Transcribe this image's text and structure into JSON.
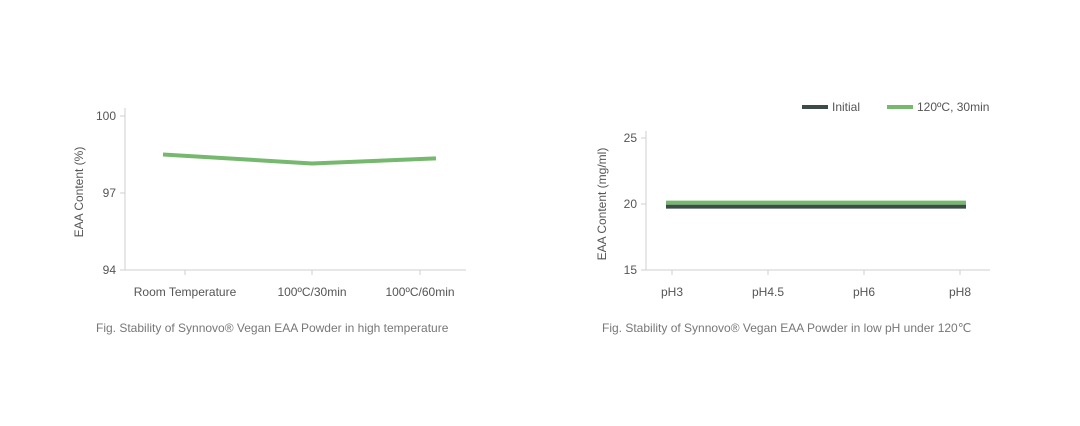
{
  "chart_data": [
    {
      "type": "line",
      "categories": [
        "Room Temperature",
        "100ºC/30min",
        "100ºC/60min"
      ],
      "series": [
        {
          "values": [
            98.5,
            98.15,
            98.35
          ],
          "color": "#76b86e"
        }
      ],
      "ylabel": "EAA Content (%)",
      "yticks": [
        "94",
        "97",
        "100"
      ],
      "ylim": [
        94,
        100
      ],
      "grid": false,
      "caption": "Fig. Stability of Synnovo® Vegan EAA Powder in high temperature"
    },
    {
      "type": "line",
      "categories": [
        "pH3",
        "pH4.5",
        "pH6",
        "pH8"
      ],
      "series": [
        {
          "name": "Initial",
          "values": [
            19.8,
            19.8,
            19.8,
            19.8
          ],
          "color": "#3e4a48"
        },
        {
          "name": "120ºC, 30min",
          "values": [
            20.1,
            20.1,
            20.1,
            20.1
          ],
          "color": "#76b86e"
        }
      ],
      "ylabel": "EAA Content (mg/ml)",
      "yticks": [
        "15",
        "20",
        "25"
      ],
      "ylim": [
        15,
        25
      ],
      "grid": false,
      "legend": "top-right",
      "caption": "Fig. Stability of Synnovo® Vegan EAA Powder in low pH under 120℃"
    }
  ]
}
